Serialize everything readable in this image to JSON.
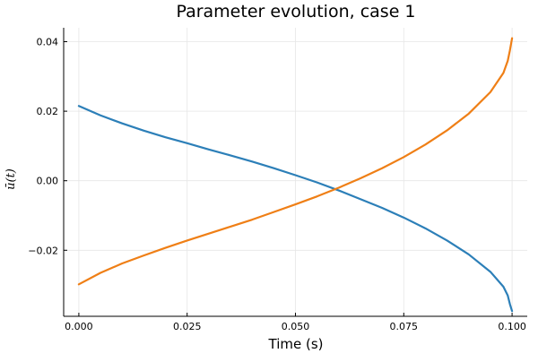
{
  "chart_data": {
    "type": "line",
    "title": "Parameter evolution, case 1",
    "xlabel": "Time (s)",
    "ylabel": "ū(t)",
    "xlim": [
      -0.0035,
      0.1035
    ],
    "ylim": [
      -0.039,
      0.044
    ],
    "xticks": [
      0.0,
      0.025,
      0.05,
      0.075,
      0.1
    ],
    "xtick_labels": [
      "0.000",
      "0.025",
      "0.050",
      "0.075",
      "0.100"
    ],
    "yticks": [
      -0.02,
      0.0,
      0.02,
      0.04
    ],
    "ytick_labels": [
      "−0.02",
      "0.00",
      "0.02",
      "0.04"
    ],
    "grid": true,
    "legend": "none",
    "series": [
      {
        "name": "series-1",
        "color": "#2c7fb8",
        "x": [
          0.0,
          0.005,
          0.01,
          0.015,
          0.02,
          0.025,
          0.03,
          0.035,
          0.04,
          0.045,
          0.05,
          0.055,
          0.06,
          0.065,
          0.07,
          0.075,
          0.08,
          0.085,
          0.09,
          0.095,
          0.098,
          0.099,
          0.0995,
          0.1
        ],
        "y": [
          0.0215,
          0.0188,
          0.0165,
          0.0144,
          0.0125,
          0.0108,
          0.009,
          0.0073,
          0.0055,
          0.0036,
          0.0016,
          -0.0005,
          -0.0028,
          -0.0053,
          -0.0078,
          -0.0106,
          -0.0137,
          -0.0172,
          -0.0212,
          -0.0262,
          -0.0305,
          -0.033,
          -0.0355,
          -0.0375
        ]
      },
      {
        "name": "series-2",
        "color": "#ef7f16",
        "x": [
          0.0,
          0.005,
          0.01,
          0.015,
          0.02,
          0.025,
          0.03,
          0.035,
          0.04,
          0.045,
          0.05,
          0.055,
          0.06,
          0.065,
          0.07,
          0.075,
          0.08,
          0.085,
          0.09,
          0.095,
          0.098,
          0.099,
          0.0995,
          0.1
        ],
        "y": [
          -0.0298,
          -0.0265,
          -0.0238,
          -0.0215,
          -0.0193,
          -0.0172,
          -0.0152,
          -0.0132,
          -0.0112,
          -0.009,
          -0.0068,
          -0.0045,
          -0.002,
          0.0007,
          0.0036,
          0.0068,
          0.0104,
          0.0145,
          0.0193,
          0.0255,
          0.031,
          0.0345,
          0.0375,
          0.041
        ]
      }
    ]
  }
}
